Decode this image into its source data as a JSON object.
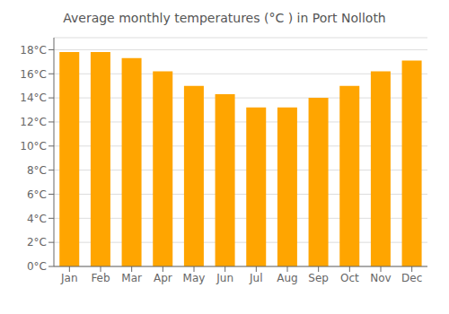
{
  "chart_data": {
    "type": "bar",
    "title": "Average monthly temperatures (°C ) in Port Nolloth",
    "categories": [
      "Jan",
      "Feb",
      "Mar",
      "Apr",
      "May",
      "Jun",
      "Jul",
      "Aug",
      "Sep",
      "Oct",
      "Nov",
      "Dec"
    ],
    "values": [
      17.8,
      17.8,
      17.3,
      16.2,
      15.0,
      14.3,
      13.2,
      13.2,
      14.0,
      15.0,
      16.2,
      17.1
    ],
    "color": "#FFA500",
    "ylim": [
      0,
      19
    ],
    "yticks": [
      {
        "value": 0,
        "label": "0°C"
      },
      {
        "value": 2,
        "label": "2°C"
      },
      {
        "value": 4,
        "label": "4°C"
      },
      {
        "value": 6,
        "label": "6°C"
      },
      {
        "value": 8,
        "label": "8°C"
      },
      {
        "value": 10,
        "label": "10°C"
      },
      {
        "value": 12,
        "label": "12°C"
      },
      {
        "value": 14,
        "label": "14°C"
      },
      {
        "value": 16,
        "label": "16°C"
      },
      {
        "value": 18,
        "label": "18°C"
      }
    ],
    "grid": true
  }
}
